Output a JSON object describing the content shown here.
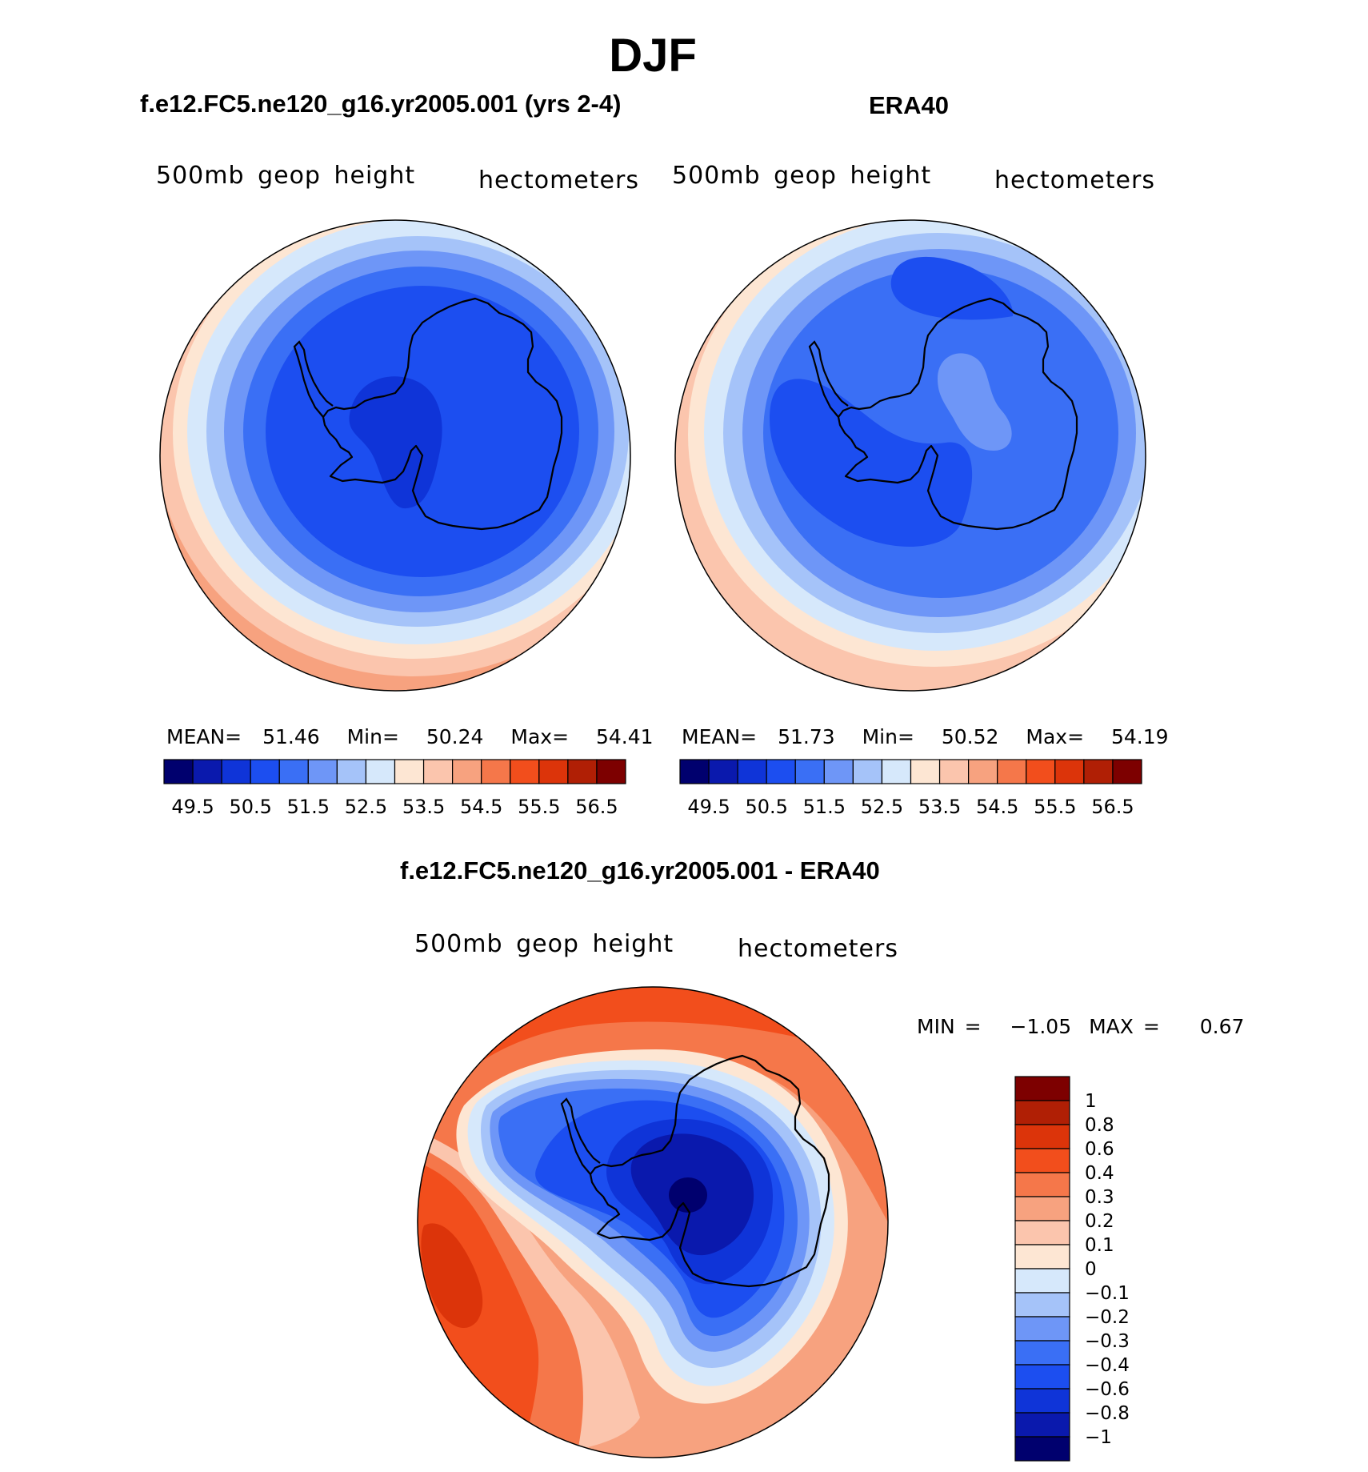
{
  "season_title": "DJF",
  "panels": [
    {
      "id": "model",
      "case_title": "f.e12.FC5.ne120_g16.yr2005.001 (yrs 2-4)",
      "variable_label": "500mb geop height",
      "units_label": "hectometers",
      "stats": {
        "mean_label": "MEAN=",
        "mean": "51.46",
        "min_label": "Min=",
        "min": "50.24",
        "max_label": "Max=",
        "max": "54.41"
      }
    },
    {
      "id": "obs",
      "case_title": "ERA40",
      "variable_label": "500mb geop height",
      "units_label": "hectometers",
      "stats": {
        "mean_label": "MEAN=",
        "mean": "51.73",
        "min_label": "Min=",
        "min": "50.52",
        "max_label": "Max=",
        "max": "54.19"
      }
    },
    {
      "id": "diff",
      "case_title": "f.e12.FC5.ne120_g16.yr2005.001 - ERA40",
      "variable_label": "500mb geop height",
      "units_label": "hectometers",
      "stats": {
        "min_label": "MIN =",
        "min": "−1.05",
        "max_label": "MAX =",
        "max": "0.67"
      }
    }
  ],
  "colorbar_abs": {
    "tick_labels": [
      "49.5",
      "50.5",
      "51.5",
      "52.5",
      "53.5",
      "54.5",
      "55.5",
      "56.5"
    ],
    "colors": [
      "#00006e",
      "#0a19ad",
      "#0f34d8",
      "#1c4ef0",
      "#3a6ff5",
      "#6e96f7",
      "#a5c3f9",
      "#d6e8fb",
      "#fde6d3",
      "#fbc5ad",
      "#f7a27f",
      "#f5774a",
      "#f24e1c",
      "#dc340a",
      "#b01f05",
      "#7d0000"
    ]
  },
  "colorbar_diff": {
    "tick_labels": [
      "1",
      "0.8",
      "0.6",
      "0.4",
      "0.3",
      "0.2",
      "0.1",
      "0",
      "−0.1",
      "−0.2",
      "−0.3",
      "−0.4",
      "−0.6",
      "−0.8",
      "−1"
    ],
    "colors_top_to_bottom": [
      "#7d0000",
      "#b01f05",
      "#dc340a",
      "#f24e1c",
      "#f5774a",
      "#f7a27f",
      "#fbc5ad",
      "#fde6d3",
      "#d6e8fb",
      "#a5c3f9",
      "#6e96f7",
      "#3a6ff5",
      "#1c4ef0",
      "#0f34d8",
      "#0a19ad",
      "#00006e"
    ]
  },
  "map_layers": {
    "model": [
      "#f7a27f",
      "#fbc5ad",
      "#fde6d3",
      "#d6e8fb",
      "#a5c3f9",
      "#6e96f7",
      "#3a6ff5",
      "#1c4ef0",
      "#0f34d8"
    ],
    "obs": [
      "#fbc5ad",
      "#fde6d3",
      "#d6e8fb",
      "#a5c3f9",
      "#6e96f7",
      "#3a6ff5",
      "#1c4ef0",
      "#3a6ff5",
      "#6e96f7"
    ],
    "diff_colors": {
      "strong_pos": "#dc340a",
      "pos": "#f24e1c",
      "mid_pos": "#f5774a",
      "light_pos": "#f7a27f",
      "pale_pos": "#fbc5ad",
      "zero_pos": "#fde6d3",
      "zero_neg": "#d6e8fb",
      "light_neg": "#a5c3f9",
      "neg": "#6e96f7",
      "neg2": "#3a6ff5",
      "neg3": "#1c4ef0",
      "neg4": "#0f34d8",
      "neg5": "#0a19ad",
      "neg6": "#00006e"
    }
  }
}
